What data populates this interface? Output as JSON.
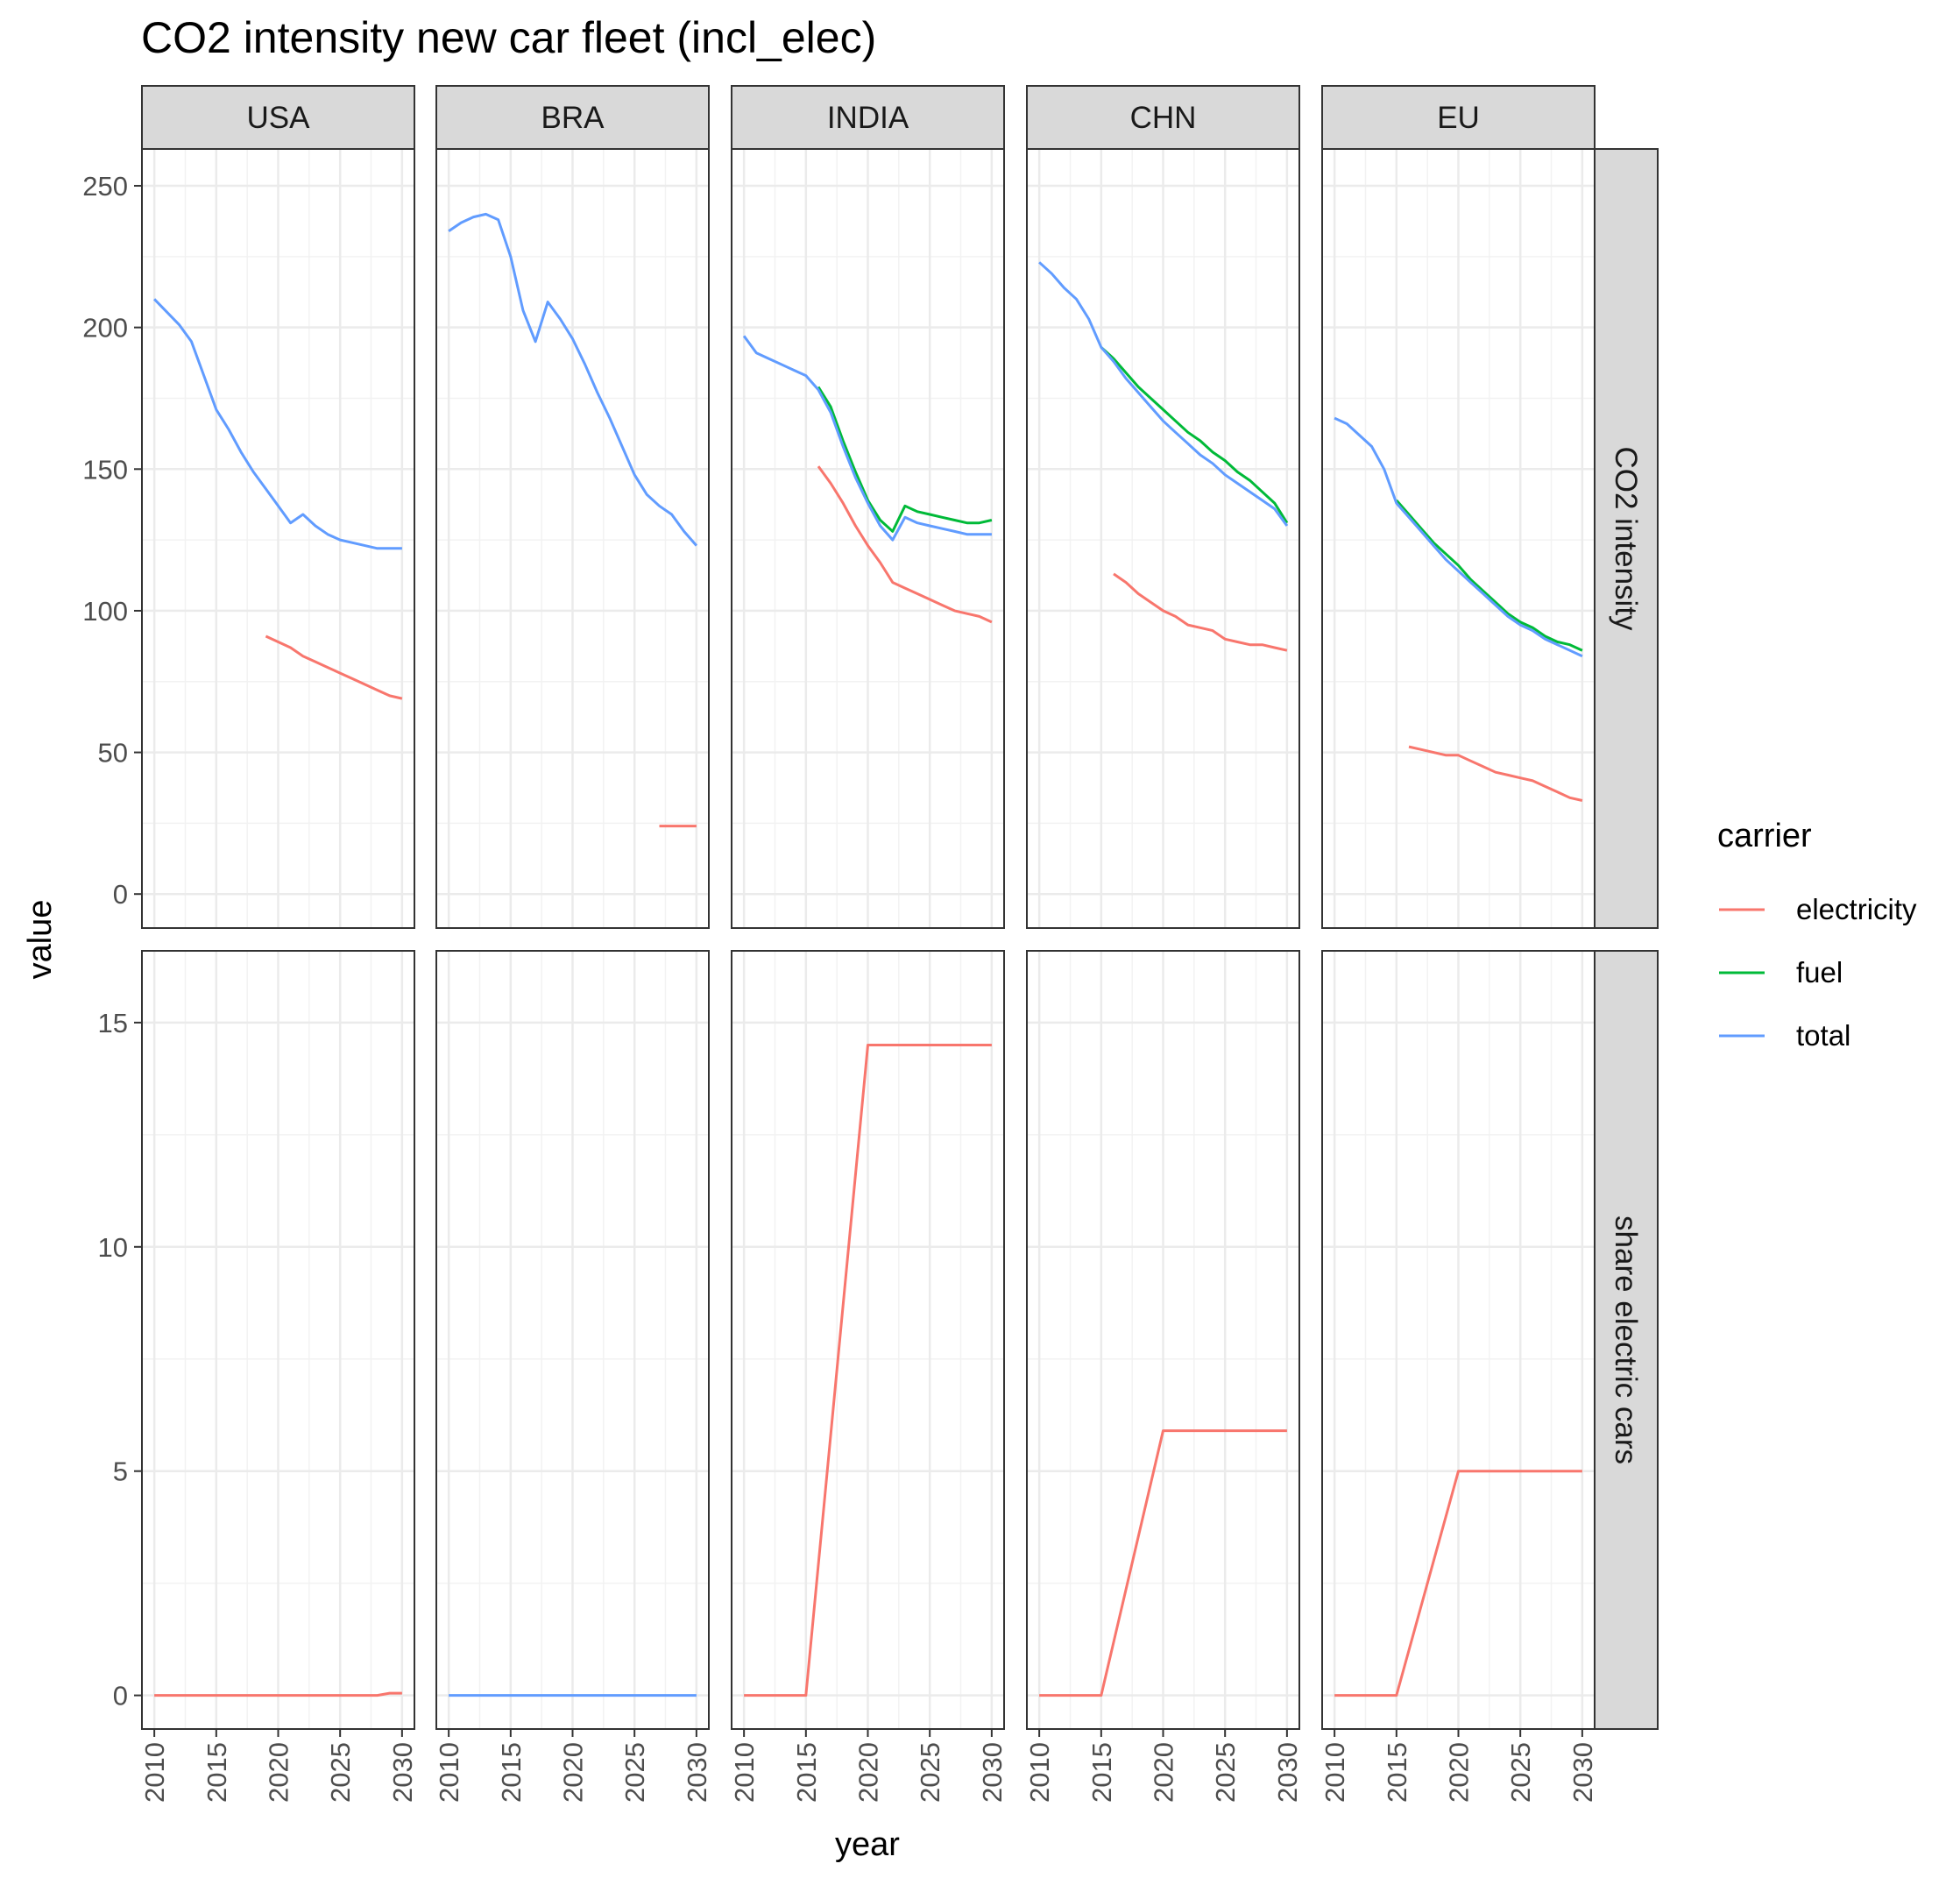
{
  "chart_data": {
    "type": "line",
    "title": "CO2 intensity new car fleet (incl_elec)",
    "xlabel": "year",
    "ylabel": "value",
    "columns": [
      "USA",
      "BRA",
      "INDIA",
      "CHN",
      "EU"
    ],
    "rows": [
      "CO2 intensity",
      "share electric cars"
    ],
    "x_ticks": [
      "2010",
      "2015",
      "2020",
      "2025",
      "2030"
    ],
    "xlim": [
      2009,
      2031
    ],
    "row_scales": [
      {
        "ylim": [
          -12,
          263
        ],
        "ticks": [
          "0",
          "50",
          "100",
          "150",
          "200",
          "250"
        ]
      },
      {
        "ylim": [
          -0.75,
          16.6
        ],
        "ticks": [
          "0",
          "5",
          "10",
          "15"
        ]
      }
    ],
    "legend": {
      "title": "carrier",
      "position": "right",
      "items": [
        {
          "label": "electricity",
          "color": "#F8766D"
        },
        {
          "label": "fuel",
          "color": "#00BA38"
        },
        {
          "label": "total",
          "color": "#619CFF"
        }
      ]
    },
    "grid": true,
    "panels": [
      {
        "column": "USA",
        "row": "CO2 intensity",
        "series": [
          {
            "name": "total",
            "x": [
              2010,
              2012,
              2013,
              2014,
              2015,
              2016,
              2017,
              2018,
              2019,
              2020,
              2021,
              2022,
              2023,
              2024,
              2025,
              2026,
              2027,
              2028,
              2029,
              2030
            ],
            "y": [
              210,
              201,
              195,
              183,
              171,
              164,
              156,
              149,
              143,
              137,
              131,
              134,
              130,
              127,
              125,
              124,
              123,
              122,
              122,
              122
            ]
          },
          {
            "name": "electricity",
            "x": [
              2019,
              2020,
              2021,
              2022,
              2023,
              2024,
              2025,
              2026,
              2027,
              2028,
              2029,
              2030
            ],
            "y": [
              91,
              89,
              87,
              84,
              82,
              80,
              78,
              76,
              74,
              72,
              70,
              69
            ]
          }
        ]
      },
      {
        "column": "BRA",
        "row": "CO2 intensity",
        "series": [
          {
            "name": "total",
            "x": [
              2010,
              2011,
              2012,
              2013,
              2014,
              2015,
              2016,
              2017,
              2018,
              2019,
              2020,
              2021,
              2022,
              2023,
              2024,
              2025,
              2026,
              2027,
              2028,
              2029,
              2030
            ],
            "y": [
              234,
              237,
              239,
              240,
              238,
              225,
              206,
              195,
              209,
              203,
              196,
              187,
              177,
              168,
              158,
              148,
              141,
              137,
              134,
              128,
              123
            ]
          },
          {
            "name": "electricity",
            "x": [
              2027,
              2030
            ],
            "y": [
              24,
              24
            ]
          }
        ]
      },
      {
        "column": "INDIA",
        "row": "CO2 intensity",
        "series": [
          {
            "name": "fuel",
            "x": [
              2016,
              2017,
              2018,
              2019,
              2020,
              2021,
              2022,
              2023,
              2024,
              2025,
              2026,
              2027,
              2028,
              2029,
              2030
            ],
            "y": [
              179,
              172,
              160,
              149,
              139,
              132,
              128,
              137,
              135,
              134,
              133,
              132,
              131,
              131,
              132
            ]
          },
          {
            "name": "total",
            "x": [
              2010,
              2011,
              2012,
              2013,
              2014,
              2015,
              2016,
              2017,
              2018,
              2019,
              2020,
              2021,
              2022,
              2023,
              2024,
              2025,
              2026,
              2027,
              2028,
              2029,
              2030
            ],
            "y": [
              197,
              191,
              189,
              187,
              185,
              183,
              178,
              170,
              158,
              147,
              138,
              130,
              125,
              133,
              131,
              130,
              129,
              128,
              127,
              127,
              127
            ]
          },
          {
            "name": "electricity",
            "x": [
              2016,
              2017,
              2018,
              2019,
              2020,
              2021,
              2022,
              2023,
              2024,
              2025,
              2026,
              2027,
              2028,
              2029,
              2030
            ],
            "y": [
              151,
              145,
              138,
              130,
              123,
              117,
              110,
              108,
              106,
              104,
              102,
              100,
              99,
              98,
              96
            ]
          }
        ]
      },
      {
        "column": "CHN",
        "row": "CO2 intensity",
        "series": [
          {
            "name": "fuel",
            "x": [
              2015,
              2016,
              2017,
              2018,
              2019,
              2020,
              2021,
              2022,
              2023,
              2024,
              2025,
              2026,
              2027,
              2028,
              2029,
              2030
            ],
            "y": [
              193,
              189,
              184,
              179,
              175,
              171,
              167,
              163,
              160,
              156,
              153,
              149,
              146,
              142,
              138,
              131
            ]
          },
          {
            "name": "total",
            "x": [
              2010,
              2011,
              2012,
              2013,
              2014,
              2015,
              2016,
              2017,
              2018,
              2019,
              2020,
              2021,
              2022,
              2023,
              2024,
              2025,
              2026,
              2027,
              2028,
              2029,
              2030
            ],
            "y": [
              223,
              219,
              214,
              210,
              203,
              193,
              188,
              182,
              177,
              172,
              167,
              163,
              159,
              155,
              152,
              148,
              145,
              142,
              139,
              136,
              130
            ]
          },
          {
            "name": "electricity",
            "x": [
              2016,
              2017,
              2018,
              2019,
              2020,
              2021,
              2022,
              2023,
              2024,
              2025,
              2026,
              2027,
              2028,
              2029,
              2030
            ],
            "y": [
              113,
              110,
              106,
              103,
              100,
              98,
              95,
              94,
              93,
              90,
              89,
              88,
              88,
              87,
              86
            ]
          }
        ]
      },
      {
        "column": "EU",
        "row": "CO2 intensity",
        "series": [
          {
            "name": "fuel",
            "x": [
              2015,
              2016,
              2017,
              2018,
              2019,
              2020,
              2021,
              2022,
              2023,
              2024,
              2025,
              2026,
              2027,
              2028,
              2029,
              2030
            ],
            "y": [
              139,
              134,
              129,
              124,
              120,
              116,
              111,
              107,
              103,
              99,
              96,
              94,
              91,
              89,
              88,
              86
            ]
          },
          {
            "name": "total",
            "x": [
              2010,
              2011,
              2012,
              2013,
              2014,
              2015,
              2016,
              2017,
              2018,
              2019,
              2020,
              2021,
              2022,
              2023,
              2024,
              2025,
              2026,
              2027,
              2028,
              2029,
              2030
            ],
            "y": [
              168,
              166,
              162,
              158,
              150,
              138,
              133,
              128,
              123,
              118,
              114,
              110,
              106,
              102,
              98,
              95,
              93,
              90,
              88,
              86,
              84
            ]
          },
          {
            "name": "electricity",
            "x": [
              2016,
              2017,
              2018,
              2019,
              2020,
              2021,
              2022,
              2023,
              2024,
              2025,
              2026,
              2027,
              2028,
              2029,
              2030
            ],
            "y": [
              52,
              51,
              50,
              49,
              49,
              47,
              45,
              43,
              42,
              41,
              40,
              38,
              36,
              34,
              33
            ]
          }
        ]
      },
      {
        "column": "USA",
        "row": "share electric cars",
        "series": [
          {
            "name": "electricity",
            "x": [
              2010,
              2028,
              2029,
              2030
            ],
            "y": [
              0,
              0,
              0.05,
              0.05
            ]
          }
        ]
      },
      {
        "column": "BRA",
        "row": "share electric cars",
        "series": [
          {
            "name": "total",
            "x": [
              2010,
              2030
            ],
            "y": [
              0,
              0
            ]
          }
        ]
      },
      {
        "column": "INDIA",
        "row": "share electric cars",
        "series": [
          {
            "name": "electricity",
            "x": [
              2010,
              2015,
              2020,
              2030
            ],
            "y": [
              0,
              0,
              14.5,
              14.5
            ]
          }
        ]
      },
      {
        "column": "CHN",
        "row": "share electric cars",
        "series": [
          {
            "name": "electricity",
            "x": [
              2010,
              2015,
              2020,
              2030
            ],
            "y": [
              0,
              0,
              5.9,
              5.9
            ]
          }
        ]
      },
      {
        "column": "EU",
        "row": "share electric cars",
        "series": [
          {
            "name": "electricity",
            "x": [
              2010,
              2015,
              2019,
              2020,
              2030
            ],
            "y": [
              0,
              0,
              4,
              5,
              5
            ]
          }
        ]
      }
    ]
  }
}
